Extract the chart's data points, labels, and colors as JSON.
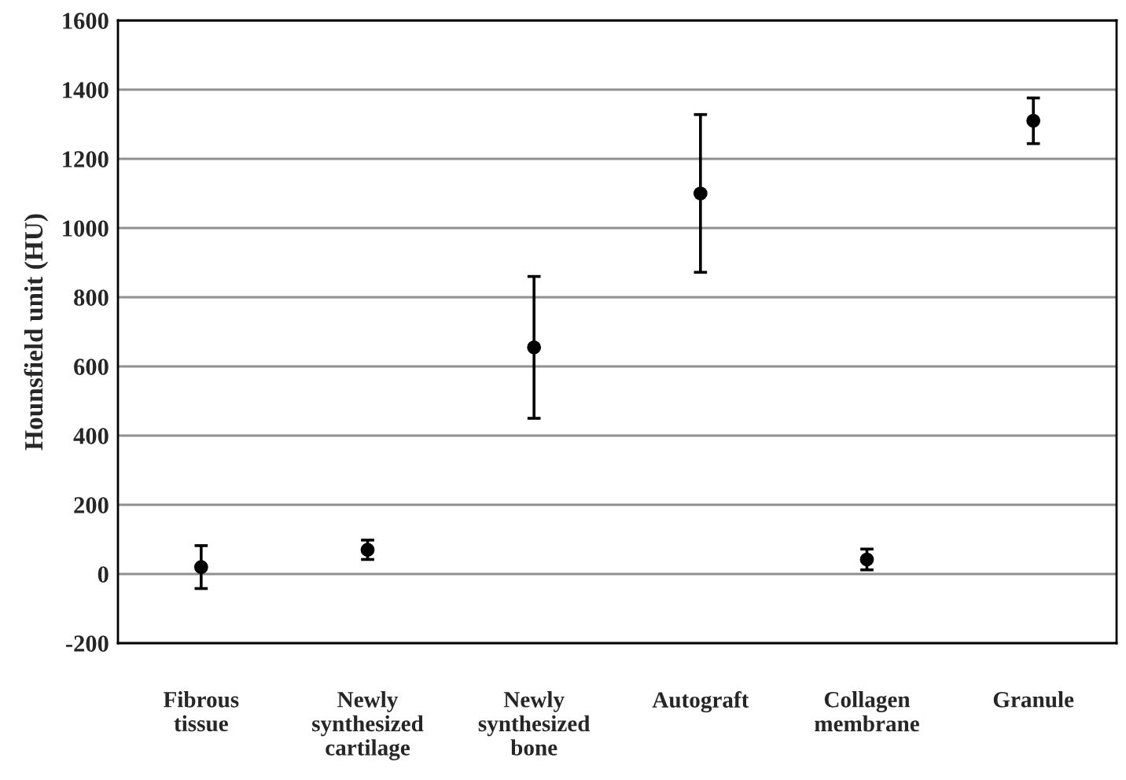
{
  "chart_data": {
    "type": "scatter",
    "ylabel": "Hounsfield unit (HU)",
    "categories": [
      "Fibrous tissue",
      "Newly synthesized cartilage",
      "Newly synthesized bone",
      "Autograft",
      "Collagen membrane",
      "Granule"
    ],
    "values": [
      20,
      70,
      655,
      1100,
      42,
      1310
    ],
    "errors": [
      62,
      28,
      205,
      228,
      30,
      66
    ],
    "color": "#000000",
    "marker": "circle",
    "ylim": [
      -200,
      1600
    ],
    "yticks": [
      -200,
      0,
      200,
      400,
      600,
      800,
      1000,
      1200,
      1400,
      1600
    ],
    "grid": "y"
  }
}
